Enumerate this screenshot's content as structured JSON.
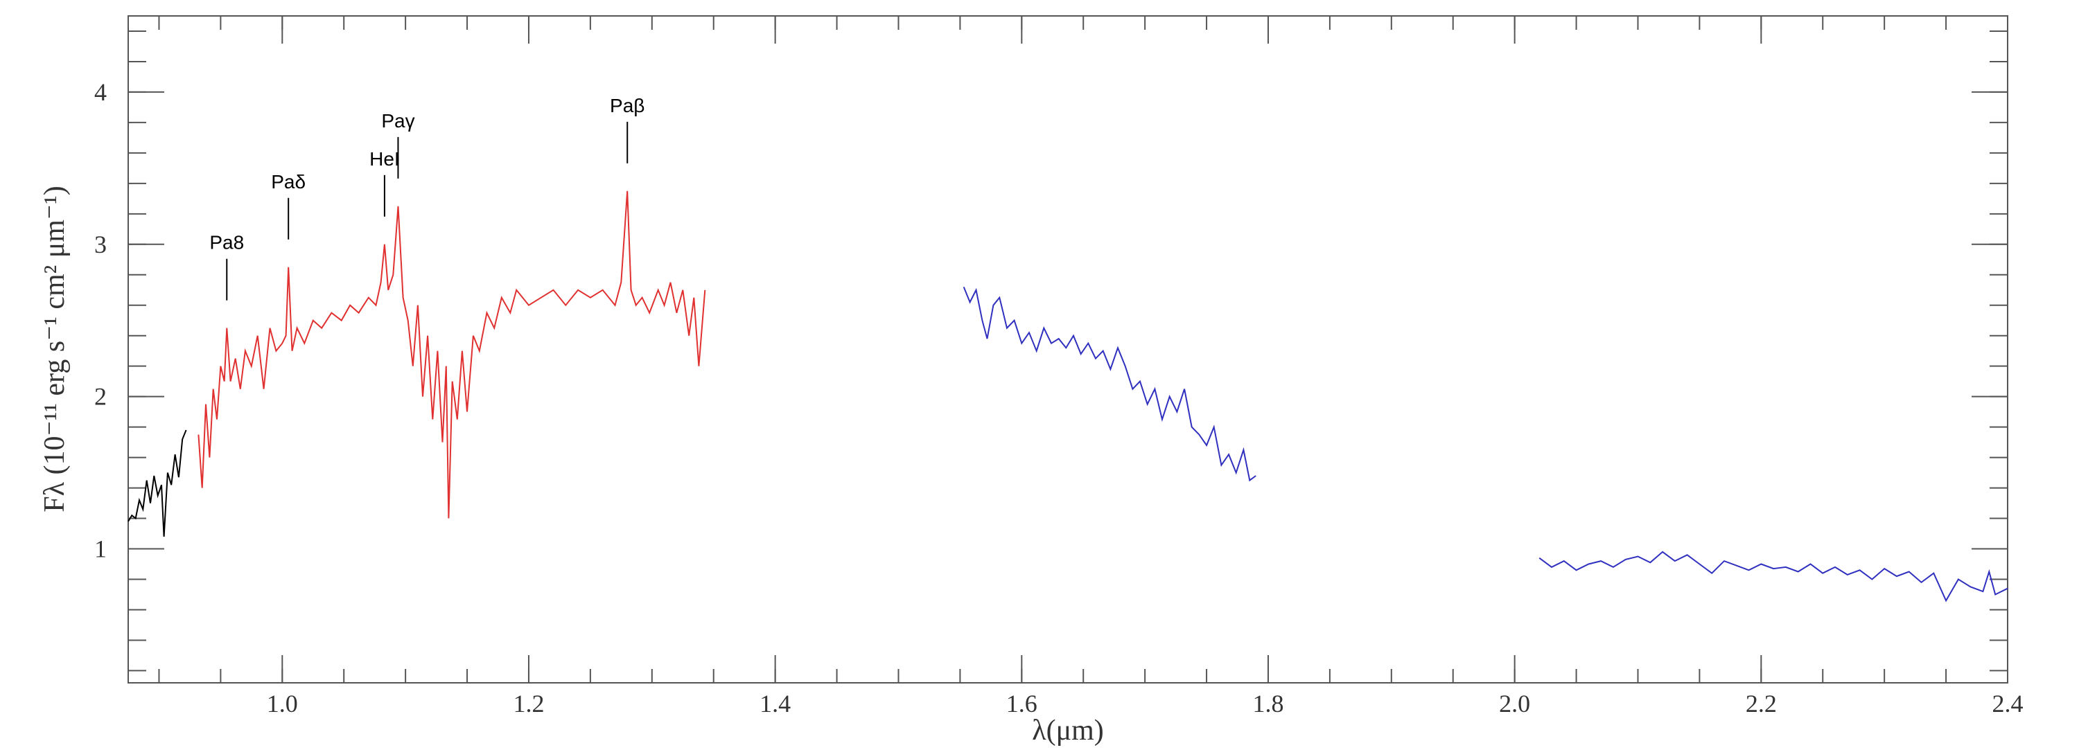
{
  "chart_data": {
    "type": "line",
    "x_label": "λ(μm)",
    "y_label": "Fλ (10⁻¹¹ erg s⁻¹ cm² μm⁻¹)",
    "xlim": [
      0.875,
      2.4
    ],
    "xticks": [
      {
        "value": 1.0,
        "label": "1.0"
      },
      1.2,
      1.4,
      1.6,
      1.8,
      {
        "value": 2.0,
        "label": "2.0"
      },
      2.2,
      2.4
    ],
    "ylim": [
      0.12,
      4.5
    ],
    "yticks": [
      1,
      2,
      3,
      4
    ],
    "annotations": [
      {
        "text": "Pa8",
        "x": 0.955
      },
      {
        "text": "Paδ",
        "x": 1.005
      },
      {
        "text": "HeI",
        "x": 1.083
      },
      {
        "text": "Paγ",
        "x": 1.094
      },
      {
        "text": "Paβ",
        "x": 1.28
      }
    ],
    "series": [
      {
        "color": "#000000",
        "x": [
          0.875,
          0.878,
          0.881,
          0.884,
          0.887,
          0.89,
          0.893,
          0.896,
          0.899,
          0.902,
          0.904,
          0.907,
          0.91,
          0.913,
          0.916,
          0.919,
          0.922
        ],
        "values": [
          1.18,
          1.22,
          1.2,
          1.32,
          1.26,
          1.45,
          1.3,
          1.48,
          1.35,
          1.42,
          1.08,
          1.5,
          1.42,
          1.62,
          1.47,
          1.72,
          1.78
        ]
      },
      {
        "color": "#e03030",
        "x": [
          0.932,
          0.935,
          0.938,
          0.941,
          0.944,
          0.947,
          0.95,
          0.953,
          0.955,
          0.958,
          0.962,
          0.966,
          0.97,
          0.975,
          0.98,
          0.985,
          0.99,
          0.995,
          1.0,
          1.003,
          1.005,
          1.008,
          1.012,
          1.018,
          1.025,
          1.032,
          1.04,
          1.048,
          1.055,
          1.062,
          1.07,
          1.076,
          1.08,
          1.083,
          1.086,
          1.09,
          1.094,
          1.098,
          1.102,
          1.106,
          1.11,
          1.114,
          1.118,
          1.122,
          1.126,
          1.13,
          1.133,
          1.135,
          1.138,
          1.142,
          1.146,
          1.15,
          1.155,
          1.16,
          1.166,
          1.172,
          1.178,
          1.185,
          1.19,
          1.2,
          1.21,
          1.22,
          1.23,
          1.24,
          1.25,
          1.26,
          1.27,
          1.275,
          1.28,
          1.283,
          1.287,
          1.292,
          1.298,
          1.305,
          1.31,
          1.315,
          1.32,
          1.325,
          1.33,
          1.334,
          1.338,
          1.343
        ],
        "values": [
          1.75,
          1.4,
          1.95,
          1.6,
          2.05,
          1.85,
          2.2,
          2.1,
          2.45,
          2.1,
          2.25,
          2.05,
          2.3,
          2.2,
          2.4,
          2.05,
          2.45,
          2.3,
          2.35,
          2.4,
          2.85,
          2.3,
          2.45,
          2.35,
          2.5,
          2.45,
          2.55,
          2.5,
          2.6,
          2.55,
          2.65,
          2.6,
          2.75,
          3.0,
          2.7,
          2.8,
          3.25,
          2.65,
          2.5,
          2.2,
          2.6,
          2.0,
          2.4,
          1.85,
          2.3,
          1.7,
          2.2,
          1.2,
          2.1,
          1.85,
          2.3,
          1.9,
          2.4,
          2.3,
          2.55,
          2.45,
          2.65,
          2.55,
          2.7,
          2.6,
          2.65,
          2.7,
          2.6,
          2.7,
          2.65,
          2.7,
          2.6,
          2.75,
          3.35,
          2.7,
          2.6,
          2.65,
          2.55,
          2.7,
          2.6,
          2.75,
          2.55,
          2.7,
          2.4,
          2.65,
          2.2,
          2.7
        ]
      },
      {
        "color": "#3030c0",
        "x": [
          1.553,
          1.558,
          1.563,
          1.568,
          1.572,
          1.577,
          1.582,
          1.588,
          1.594,
          1.6,
          1.606,
          1.612,
          1.618,
          1.624,
          1.63,
          1.636,
          1.642,
          1.648,
          1.654,
          1.66,
          1.666,
          1.672,
          1.678,
          1.684,
          1.69,
          1.696,
          1.702,
          1.708,
          1.714,
          1.72,
          1.726,
          1.732,
          1.738,
          1.744,
          1.75,
          1.756,
          1.762,
          1.768,
          1.774,
          1.78,
          1.785,
          1.79,
          null,
          2.02,
          2.03,
          2.04,
          2.05,
          2.06,
          2.07,
          2.08,
          2.09,
          2.1,
          2.11,
          2.12,
          2.13,
          2.14,
          2.15,
          2.16,
          2.17,
          2.18,
          2.19,
          2.2,
          2.21,
          2.22,
          2.23,
          2.24,
          2.25,
          2.26,
          2.27,
          2.28,
          2.29,
          2.3,
          2.31,
          2.32,
          2.33,
          2.34,
          2.35,
          2.36,
          2.37,
          2.38,
          2.385,
          2.39,
          2.4
        ],
        "values": [
          2.72,
          2.62,
          2.7,
          2.5,
          2.38,
          2.6,
          2.65,
          2.45,
          2.5,
          2.35,
          2.42,
          2.3,
          2.45,
          2.35,
          2.38,
          2.32,
          2.4,
          2.28,
          2.35,
          2.25,
          2.3,
          2.18,
          2.32,
          2.2,
          2.05,
          2.1,
          1.95,
          2.05,
          1.85,
          2.0,
          1.9,
          2.05,
          1.8,
          1.75,
          1.68,
          1.8,
          1.55,
          1.62,
          1.5,
          1.65,
          1.45,
          1.48,
          null,
          0.94,
          0.88,
          0.92,
          0.86,
          0.9,
          0.92,
          0.88,
          0.93,
          0.95,
          0.91,
          0.98,
          0.92,
          0.96,
          0.9,
          0.84,
          0.92,
          0.89,
          0.86,
          0.9,
          0.87,
          0.88,
          0.85,
          0.9,
          0.84,
          0.88,
          0.83,
          0.86,
          0.8,
          0.87,
          0.82,
          0.85,
          0.78,
          0.84,
          0.66,
          0.8,
          0.75,
          0.72,
          0.85,
          0.7,
          0.74
        ]
      }
    ]
  }
}
